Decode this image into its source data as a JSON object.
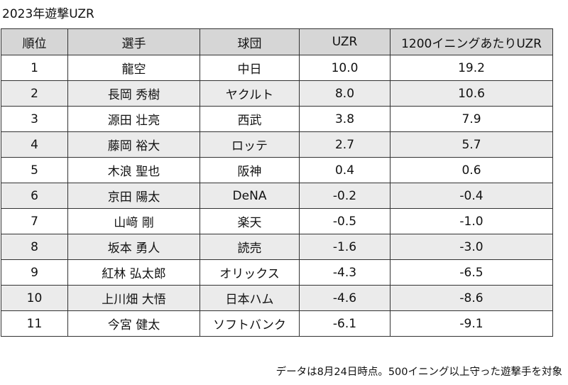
{
  "title": "2023年遊撃UZR",
  "table": {
    "headers": [
      "順位",
      "選手",
      "球団",
      "UZR",
      "1200イニングあたりUZR"
    ],
    "rows": [
      [
        "1",
        "龍空",
        "中日",
        "10.0",
        "19.2"
      ],
      [
        "2",
        "長岡 秀樹",
        "ヤクルト",
        "8.0",
        "10.6"
      ],
      [
        "3",
        "源田 壮亮",
        "西武",
        "3.8",
        "7.9"
      ],
      [
        "4",
        "藤岡 裕大",
        "ロッテ",
        "2.7",
        "5.7"
      ],
      [
        "5",
        "木浪 聖也",
        "阪神",
        "0.4",
        "0.6"
      ],
      [
        "6",
        "京田 陽太",
        "DeNA",
        "-0.2",
        "-0.4"
      ],
      [
        "7",
        "山﨑 剛",
        "楽天",
        "-0.5",
        "-1.0"
      ],
      [
        "8",
        "坂本 勇人",
        "読売",
        "-1.6",
        "-3.0"
      ],
      [
        "9",
        "紅林 弘太郎",
        "オリックス",
        "-4.3",
        "-6.5"
      ],
      [
        "10",
        "上川畑 大悟",
        "日本ハム",
        "-4.6",
        "-8.6"
      ],
      [
        "11",
        "今宮 健太",
        "ソフトバンク",
        "-6.1",
        "-9.1"
      ]
    ]
  },
  "note": "データは8月24日時点。500イニング以上守った遊撃手を対象",
  "colors": {
    "header_bg": "#d6d6d6",
    "stripe_bg": "#ebebeb",
    "border": "#333333"
  }
}
